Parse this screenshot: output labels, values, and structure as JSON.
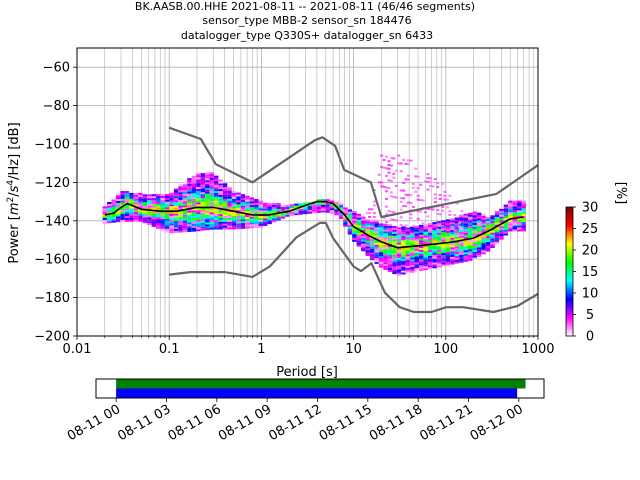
{
  "chart_data": [
    {
      "type": "heatmap",
      "title_lines": [
        "BK.AASB.00.HHE   2021-08-11 -- 2021-08-11  (46/46 segments)",
        "sensor_type MBB-2 sensor_sn 184476",
        "datalogger_type Q330S+ datalogger_sn 6433"
      ],
      "xlabel": "Period [s]",
      "ylabel_parts": [
        "Power [",
        "m",
        "2",
        "/",
        "s",
        "4",
        "/Hz] [dB]"
      ],
      "x_scale": "log",
      "xlim": [
        0.01,
        1000
      ],
      "ylim": [
        -200,
        -50
      ],
      "x_ticks": [
        0.01,
        0.1,
        1,
        10,
        100,
        1000
      ],
      "x_tick_labels": [
        "0.01",
        "0.1",
        "1",
        "10",
        "100",
        "1000"
      ],
      "y_ticks": [
        -200,
        -180,
        -160,
        -140,
        -120,
        -100,
        -80,
        -60
      ],
      "y_tick_labels": [
        "−200",
        "−180",
        "−160",
        "−140",
        "−120",
        "−100",
        "−80",
        "−60"
      ],
      "grid": true,
      "colorbar": {
        "label": "[%]",
        "range": [
          0,
          30
        ],
        "ticks": [
          0,
          5,
          10,
          15,
          20,
          25,
          30
        ],
        "tick_labels": [
          "0",
          "5",
          "10",
          "15",
          "20",
          "25",
          "30"
        ],
        "colors": [
          "#ffffff",
          "#ff00ff",
          "#0000ff",
          "#00ffff",
          "#00ff00",
          "#ffff00",
          "#ff0000",
          "#800000"
        ]
      },
      "noise_model_high": {
        "name": "NHNM",
        "color": "#666666",
        "periods": [
          0.1,
          0.22,
          0.32,
          0.8,
          3.8,
          4.6,
          6.3,
          7.9,
          15.4,
          20,
          354.8,
          1000
        ],
        "values": [
          -91.5,
          -97.4,
          -110.5,
          -120,
          -98,
          -96.5,
          -101,
          -113.5,
          -120,
          -138,
          -126,
          -111
        ]
      },
      "noise_model_low": {
        "name": "NLNM",
        "color": "#666666",
        "periods": [
          0.1,
          0.17,
          0.4,
          0.8,
          1.24,
          2.4,
          4.3,
          5,
          6,
          10,
          12,
          15.6,
          21.9,
          31.6,
          45,
          70,
          101,
          154,
          328,
          600,
          1000
        ],
        "values": [
          -168,
          -166.7,
          -166.7,
          -169.2,
          -163.7,
          -148.6,
          -141.1,
          -141.1,
          -149,
          -163.8,
          -166.2,
          -162.1,
          -177.5,
          -185,
          -187.5,
          -187.5,
          -185,
          -185,
          -187.5,
          -184.4,
          -178
        ]
      },
      "mode_line": {
        "color": "#000000",
        "periods": [
          0.02,
          0.025,
          0.03,
          0.035,
          0.05,
          0.08,
          0.12,
          0.2,
          0.3,
          0.5,
          0.8,
          1.2,
          2,
          3,
          4,
          5,
          6,
          8,
          10,
          15,
          20,
          30,
          50,
          80,
          120,
          200,
          300,
          500,
          700
        ],
        "values": [
          -137,
          -136,
          -133,
          -131,
          -134,
          -135,
          -135,
          -133,
          -133,
          -135,
          -137,
          -137,
          -135,
          -132,
          -130,
          -130,
          -131,
          -137,
          -143,
          -148,
          -151,
          -154,
          -153,
          -152,
          -151,
          -149,
          -145,
          -139,
          -138
        ]
      },
      "psd_band": {
        "periods": [
          0.02,
          0.03,
          0.05,
          0.1,
          0.2,
          0.3,
          0.5,
          1,
          2,
          3,
          5,
          7,
          10,
          15,
          20,
          30,
          50,
          100,
          200,
          300,
          500,
          700
        ],
        "upper": [
          -133,
          -124,
          -126,
          -126,
          -115,
          -115,
          -124,
          -130,
          -132,
          -131,
          -128,
          -131,
          -135,
          -140,
          -141,
          -143,
          -143,
          -140,
          -135,
          -138,
          -130,
          -130
        ],
        "lower": [
          -141,
          -140,
          -140,
          -146,
          -145,
          -144,
          -144,
          -143,
          -137,
          -136,
          -135,
          -137,
          -150,
          -159,
          -164,
          -168,
          -166,
          -163,
          -160,
          -155,
          -145,
          -145
        ]
      },
      "psd_scatter": {
        "periods": [
          14,
          20,
          30,
          50,
          100,
          150
        ],
        "upper": [
          -135,
          -106,
          -105,
          -110,
          -122,
          -132
        ],
        "lower": [
          -140,
          -140,
          -142,
          -143,
          -145,
          -145
        ]
      }
    },
    {
      "type": "timeline",
      "x_tick_labels": [
        "08-11 00",
        "08-11 03",
        "08-11 06",
        "08-11 09",
        "08-11 12",
        "08-11 15",
        "08-11 18",
        "08-11 21",
        "08-12 00"
      ],
      "x_tick_hours": [
        0,
        3,
        6,
        9,
        12,
        15,
        18,
        21,
        24
      ],
      "xlim_hours": [
        -1.2,
        25.5
      ],
      "bars": [
        {
          "color": "#008000",
          "start_hour": 0,
          "end_hour": 24.4
        },
        {
          "color": "#0000ff",
          "start_hour": 0,
          "end_hour": 23.9
        }
      ]
    }
  ]
}
